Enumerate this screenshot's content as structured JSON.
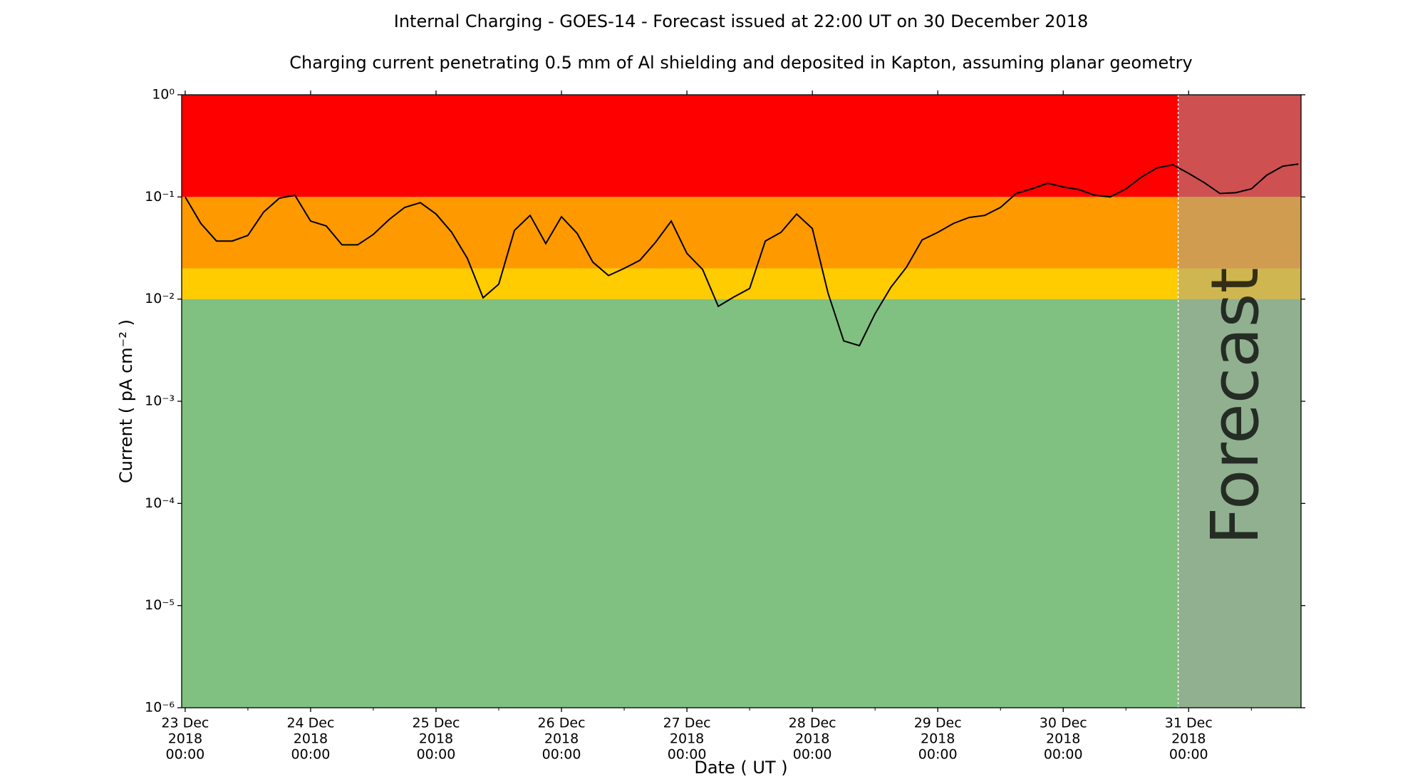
{
  "chart_data": {
    "type": "line",
    "title": "Internal Charging - GOES-14 - Forecast issued at 22:00 UT on 30 December 2018",
    "subtitle": "Charging current penetrating 0.5 mm of Al shielding and deposited in Kapton, assuming planar geometry",
    "x_label": "Date ( UT )",
    "y_label": "Current ( pA cm⁻² )",
    "forecast_label": "Forecast",
    "forecast_start": "2018-12-30 22:00",
    "yscale": "log",
    "color": "#000000",
    "zones": [
      {
        "from": 0.1,
        "to": 1,
        "color": "#ff0000"
      },
      {
        "from": 0.02,
        "to": 0.1,
        "color": "#ff9900"
      },
      {
        "from": 0.01,
        "to": 0.02,
        "color": "#ffcc00"
      },
      {
        "from": 1e-06,
        "to": 0.01,
        "color": "#80c080"
      }
    ],
    "forecast_shade": "#a0a0a0",
    "xlim": [
      "2018-12-22 23:20",
      "2018-12-31 21:30"
    ],
    "ylim": [
      1e-06,
      1
    ],
    "yticks": [
      {
        "value": 1e-06,
        "label": "10⁻⁶"
      },
      {
        "value": 1e-05,
        "label": "10⁻⁵"
      },
      {
        "value": 0.0001,
        "label": "10⁻⁴"
      },
      {
        "value": 0.001,
        "label": "10⁻³"
      },
      {
        "value": 0.01,
        "label": "10⁻²"
      },
      {
        "value": 0.1,
        "label": "10⁻¹"
      },
      {
        "value": 1,
        "label": "10⁰"
      }
    ],
    "xticks": [
      {
        "value": "2018-12-23 00:00",
        "label": [
          "23 Dec",
          "2018",
          "00:00"
        ]
      },
      {
        "value": "2018-12-24 00:00",
        "label": [
          "24 Dec",
          "2018",
          "00:00"
        ]
      },
      {
        "value": "2018-12-25 00:00",
        "label": [
          "25 Dec",
          "2018",
          "00:00"
        ]
      },
      {
        "value": "2018-12-26 00:00",
        "label": [
          "26 Dec",
          "2018",
          "00:00"
        ]
      },
      {
        "value": "2018-12-27 00:00",
        "label": [
          "27 Dec",
          "2018",
          "00:00"
        ]
      },
      {
        "value": "2018-12-28 00:00",
        "label": [
          "28 Dec",
          "2018",
          "00:00"
        ]
      },
      {
        "value": "2018-12-29 00:00",
        "label": [
          "29 Dec",
          "2018",
          "00:00"
        ]
      },
      {
        "value": "2018-12-30 00:00",
        "label": [
          "30 Dec",
          "2018",
          "00:00"
        ]
      },
      {
        "value": "2018-12-31 00:00",
        "label": [
          "31 Dec",
          "2018",
          "00:00"
        ]
      }
    ],
    "x": [
      "2018-12-23 00:00",
      "2018-12-23 03:00",
      "2018-12-23 06:00",
      "2018-12-23 09:00",
      "2018-12-23 12:00",
      "2018-12-23 15:00",
      "2018-12-23 18:00",
      "2018-12-23 21:00",
      "2018-12-24 00:00",
      "2018-12-24 03:00",
      "2018-12-24 06:00",
      "2018-12-24 09:00",
      "2018-12-24 12:00",
      "2018-12-24 15:00",
      "2018-12-24 18:00",
      "2018-12-24 21:00",
      "2018-12-25 00:00",
      "2018-12-25 03:00",
      "2018-12-25 06:00",
      "2018-12-25 09:00",
      "2018-12-25 12:00",
      "2018-12-25 15:00",
      "2018-12-25 18:00",
      "2018-12-25 21:00",
      "2018-12-26 00:00",
      "2018-12-26 03:00",
      "2018-12-26 06:00",
      "2018-12-26 09:00",
      "2018-12-26 12:00",
      "2018-12-26 15:00",
      "2018-12-26 18:00",
      "2018-12-26 21:00",
      "2018-12-27 00:00",
      "2018-12-27 03:00",
      "2018-12-27 06:00",
      "2018-12-27 09:00",
      "2018-12-27 12:00",
      "2018-12-27 15:00",
      "2018-12-27 18:00",
      "2018-12-27 21:00",
      "2018-12-28 00:00",
      "2018-12-28 03:00",
      "2018-12-28 06:00",
      "2018-12-28 09:00",
      "2018-12-28 12:00",
      "2018-12-28 15:00",
      "2018-12-28 18:00",
      "2018-12-28 21:00",
      "2018-12-29 00:00",
      "2018-12-29 03:00",
      "2018-12-29 06:00",
      "2018-12-29 09:00",
      "2018-12-29 12:00",
      "2018-12-29 15:00",
      "2018-12-29 18:00",
      "2018-12-29 21:00",
      "2018-12-30 00:00",
      "2018-12-30 03:00",
      "2018-12-30 06:00",
      "2018-12-30 09:00",
      "2018-12-30 12:00",
      "2018-12-30 15:00",
      "2018-12-30 18:00",
      "2018-12-30 21:00",
      "2018-12-31 00:00",
      "2018-12-31 03:00",
      "2018-12-31 06:00",
      "2018-12-31 09:00",
      "2018-12-31 12:00",
      "2018-12-31 15:00",
      "2018-12-31 18:00",
      "2018-12-31 21:00"
    ],
    "values": [
      0.1,
      0.055,
      0.037,
      0.037,
      0.042,
      0.071,
      0.097,
      0.104,
      0.058,
      0.052,
      0.034,
      0.034,
      0.043,
      0.06,
      0.079,
      0.088,
      0.068,
      0.045,
      0.025,
      0.0103,
      0.014,
      0.047,
      0.066,
      0.035,
      0.064,
      0.044,
      0.023,
      0.017,
      0.02,
      0.024,
      0.036,
      0.058,
      0.028,
      0.0195,
      0.0085,
      0.0105,
      0.0127,
      0.037,
      0.045,
      0.068,
      0.049,
      0.0115,
      0.0039,
      0.0035,
      0.0072,
      0.013,
      0.0205,
      0.038,
      0.045,
      0.055,
      0.063,
      0.066,
      0.079,
      0.108,
      0.12,
      0.136,
      0.125,
      0.118,
      0.104,
      0.1,
      0.12,
      0.157,
      0.193,
      0.206,
      0.17,
      0.138,
      0.108,
      0.11,
      0.12,
      0.164,
      0.2,
      0.21
    ]
  }
}
